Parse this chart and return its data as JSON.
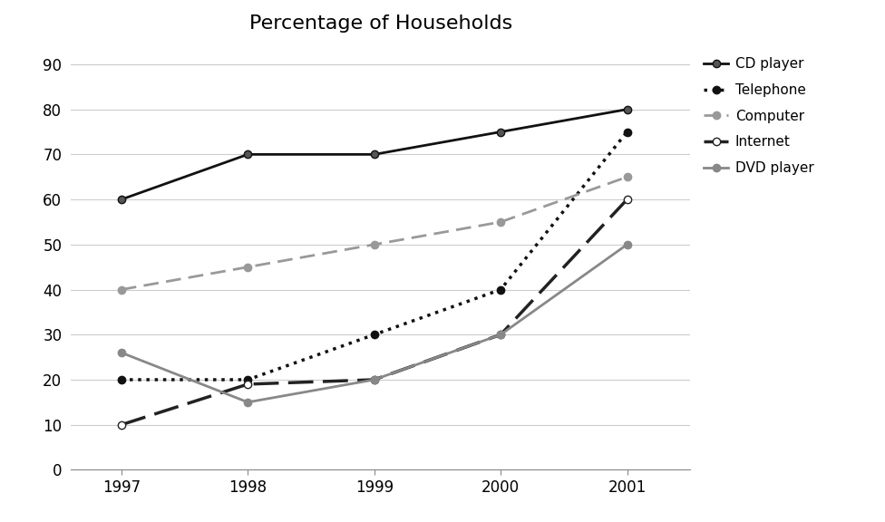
{
  "title": "Percentage of Households",
  "years": [
    1997,
    1998,
    1999,
    2000,
    2001
  ],
  "series": [
    {
      "name": "CD player",
      "values": [
        60,
        70,
        70,
        75,
        80
      ],
      "color": "#111111",
      "linestyle": "solid",
      "marker": "o",
      "markersize": 6,
      "linewidth": 2.0,
      "markerfacecolor": "#555555",
      "markeredgecolor": "#111111"
    },
    {
      "name": "Telephone",
      "values": [
        20,
        20,
        30,
        40,
        75
      ],
      "color": "#111111",
      "linestyle": "dotted",
      "marker": "o",
      "markersize": 6,
      "linewidth": 2.5,
      "markerfacecolor": "#111111",
      "markeredgecolor": "#111111"
    },
    {
      "name": "Computer",
      "values": [
        40,
        45,
        50,
        55,
        65
      ],
      "color": "#999999",
      "linestyle": "dashed",
      "marker": "o",
      "markersize": 6,
      "linewidth": 2.0,
      "markerfacecolor": "#999999",
      "markeredgecolor": "#999999"
    },
    {
      "name": "Internet",
      "values": [
        10,
        19,
        20,
        30,
        60
      ],
      "color": "#222222",
      "linestyle": "dashdot_heavy",
      "marker": "o",
      "markersize": 6,
      "linewidth": 2.5,
      "markerfacecolor": "white",
      "markeredgecolor": "#222222"
    },
    {
      "name": "DVD player",
      "values": [
        26,
        15,
        20,
        30,
        50
      ],
      "color": "#888888",
      "linestyle": "solid",
      "marker": "o",
      "markersize": 6,
      "linewidth": 2.0,
      "markerfacecolor": "#888888",
      "markeredgecolor": "#888888"
    }
  ],
  "ylim": [
    0,
    95
  ],
  "yticks": [
    0,
    10,
    20,
    30,
    40,
    50,
    60,
    70,
    80,
    90
  ],
  "xlim_left": 1996.6,
  "xlim_right": 2001.5,
  "background_color": "#ffffff",
  "grid_color": "#cccccc",
  "title_fontsize": 16,
  "legend_fontsize": 11,
  "tick_fontsize": 12
}
